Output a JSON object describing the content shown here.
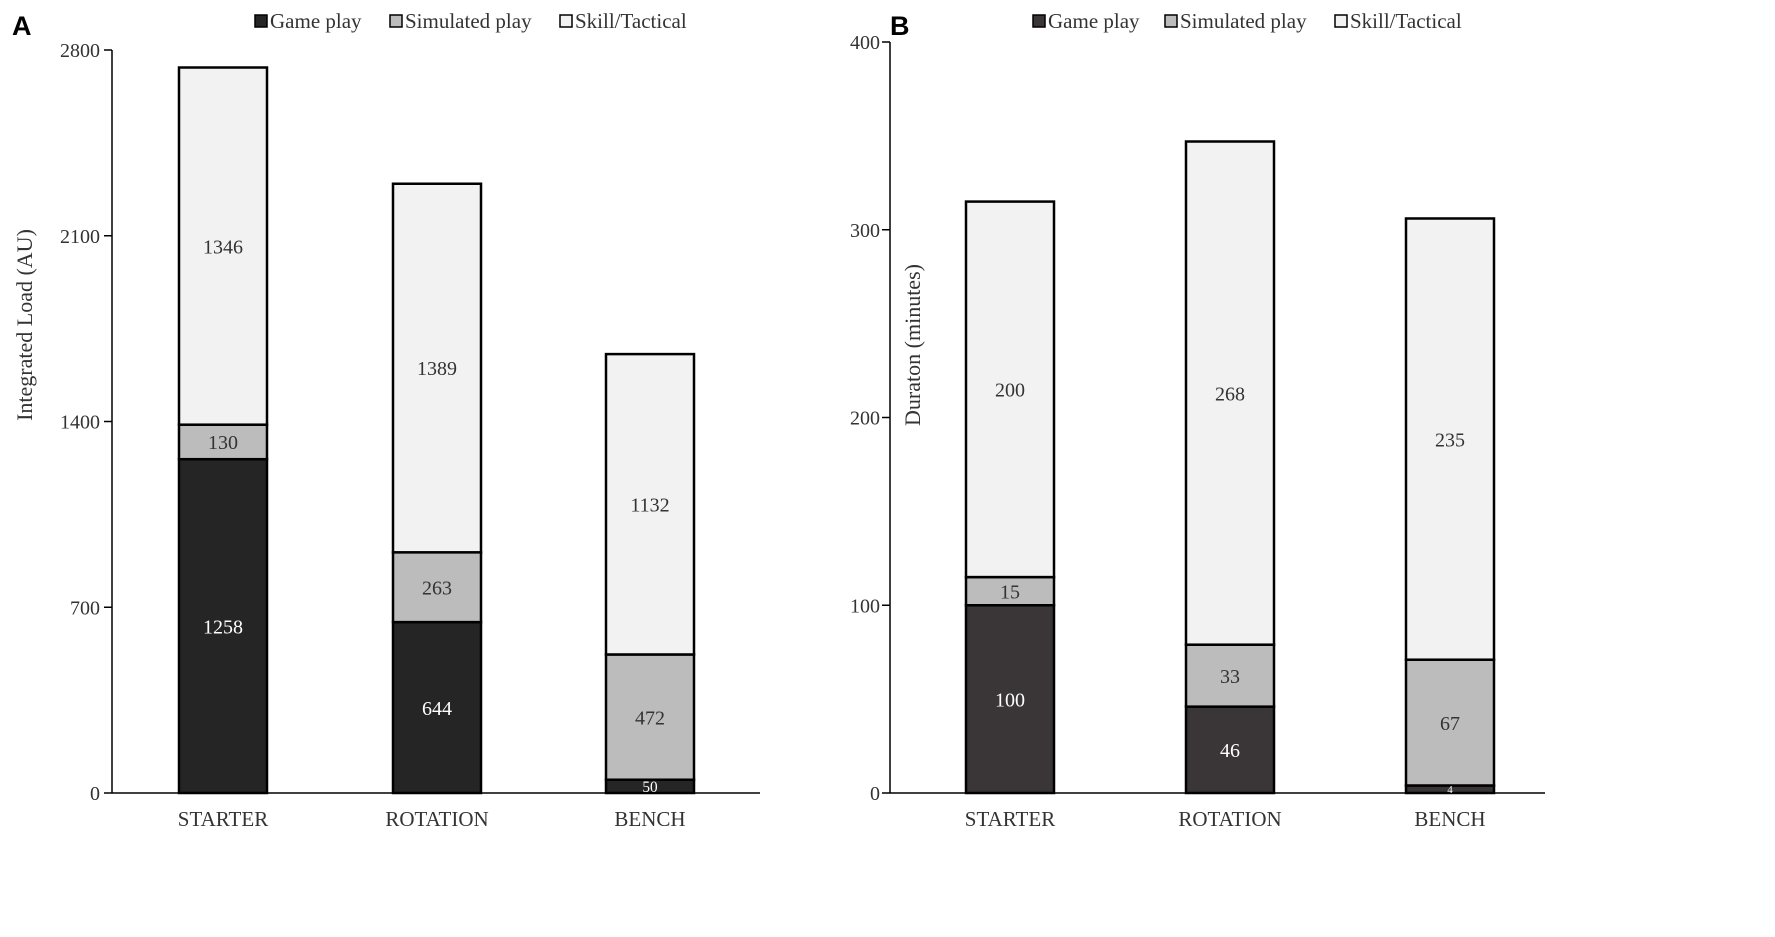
{
  "colors": {
    "game_play_a": "#252525",
    "game_play_b": "#3a3637",
    "simulated_play": "#bcbcbc",
    "skill_tactical": "#f2f2f2",
    "axis": "#000000",
    "text_dark": "#333333"
  },
  "chart_data": [
    {
      "panel": "A",
      "type": "bar",
      "stacked": true,
      "categories": [
        "STARTER",
        "ROTATION",
        "BENCH"
      ],
      "series": [
        {
          "name": "Game play",
          "values": [
            1258,
            644,
            50
          ]
        },
        {
          "name": "Simulated play",
          "values": [
            130,
            263,
            472
          ]
        },
        {
          "name": "Skill/Tactical",
          "values": [
            1346,
            1389,
            1132
          ]
        }
      ],
      "data_labels": [
        [
          "1258",
          "130",
          "1346"
        ],
        [
          "644",
          "263",
          "1389"
        ],
        [
          "50",
          "472",
          "1132"
        ]
      ],
      "ylabel": "Integrated Load (AU)",
      "ylim": [
        0,
        2800
      ],
      "yticks": [
        0,
        700,
        1400,
        2100,
        2800
      ],
      "ytick_labels": [
        "0",
        "700",
        "1400",
        "2100",
        "2800"
      ],
      "legend": [
        "Game play",
        "Simulated play",
        "Skill/Tactical"
      ],
      "legend_position": "top-right"
    },
    {
      "panel": "B",
      "type": "bar",
      "stacked": true,
      "categories": [
        "STARTER",
        "ROTATION",
        "BENCH"
      ],
      "series": [
        {
          "name": "Game play",
          "values": [
            100,
            46,
            4
          ]
        },
        {
          "name": "Simulated play",
          "values": [
            15,
            33,
            67
          ]
        },
        {
          "name": "Skill/Tactical",
          "values": [
            200,
            268,
            235
          ]
        }
      ],
      "data_labels": [
        [
          "100",
          "15",
          "200"
        ],
        [
          "46",
          "33",
          "268"
        ],
        [
          "4",
          "67",
          "235"
        ]
      ],
      "ylabel": "Duraton (minutes)",
      "ylim": [
        0,
        400
      ],
      "yticks": [
        0,
        100,
        200,
        300,
        400
      ],
      "ytick_labels": [
        "0",
        "100",
        "200",
        "300",
        "400"
      ],
      "legend": [
        "Game play",
        "Simulated play",
        "Skill/Tactical"
      ],
      "legend_position": "top-right"
    }
  ]
}
